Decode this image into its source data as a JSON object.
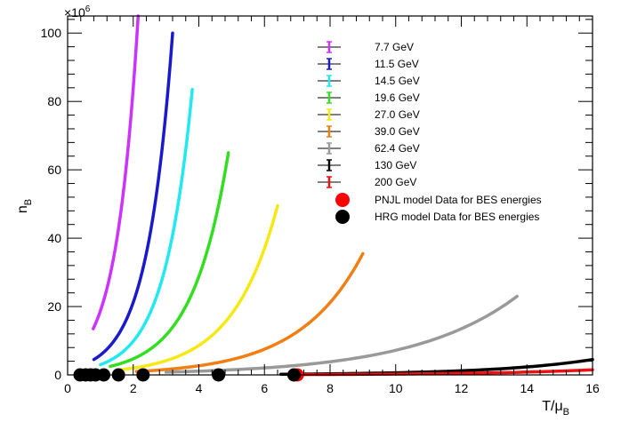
{
  "chart_data": {
    "type": "line",
    "title": "",
    "xlabel": "T/μ",
    "xlabel_sub": "B",
    "ylabel": "n",
    "ylabel_sub": "B",
    "y_multiplier_base": "×10",
    "y_multiplier_exp": "6",
    "xlim": [
      0,
      16
    ],
    "ylim": [
      0,
      105
    ],
    "x_ticks": [
      0,
      2,
      4,
      6,
      8,
      10,
      12,
      14,
      16
    ],
    "y_ticks": [
      0,
      20,
      40,
      60,
      80,
      100
    ],
    "grid": false,
    "legend_position": "top-right",
    "series": [
      {
        "name": "7.7 GeV",
        "color": "#cc33ff",
        "x_start": 0.78,
        "x_end": 2.15,
        "y_start": 13.5,
        "y_end": 105
      },
      {
        "name": "11.5 GeV",
        "color": "#1a1acc",
        "x_start": 0.8,
        "x_end": 3.2,
        "y_start": 4.5,
        "y_end": 100
      },
      {
        "name": "14.5 GeV",
        "color": "#22e8f0",
        "x_start": 1.0,
        "x_end": 3.8,
        "y_start": 3.0,
        "y_end": 83.5
      },
      {
        "name": "19.6 GeV",
        "color": "#33dd22",
        "x_start": 1.3,
        "x_end": 4.9,
        "y_start": 2.5,
        "y_end": 65
      },
      {
        "name": "27.0 GeV",
        "color": "#f5e814",
        "x_start": 1.6,
        "x_end": 6.4,
        "y_start": 1.5,
        "y_end": 49.5
      },
      {
        "name": "39.0 GeV",
        "color": "#f07f14",
        "x_start": 2.1,
        "x_end": 9.0,
        "y_start": 1.0,
        "y_end": 35.5
      },
      {
        "name": "62.4 GeV",
        "color": "#999999",
        "x_start": 3.0,
        "x_end": 13.7,
        "y_start": 0.8,
        "y_end": 23
      },
      {
        "name": "130 GeV",
        "color": "#000000",
        "x_start": 6.5,
        "x_end": 16.0,
        "y_start": 0.2,
        "y_end": 4.5
      },
      {
        "name": "200 GeV",
        "color": "#ee1111",
        "x_start": 6.9,
        "x_end": 16.0,
        "y_start": 0.1,
        "y_end": 1.5
      }
    ],
    "markers": [
      {
        "name": "PNJL model Data for BES energies",
        "color": "#ff0000",
        "points": [
          [
            7.0,
            0
          ]
        ]
      },
      {
        "name": "HRG model Data for BES energies",
        "color": "#000000",
        "points": [
          [
            0.38,
            0
          ],
          [
            0.55,
            0
          ],
          [
            0.7,
            0
          ],
          [
            0.85,
            0
          ],
          [
            1.1,
            0
          ],
          [
            1.55,
            0
          ],
          [
            2.3,
            0
          ],
          [
            4.6,
            0
          ],
          [
            6.9,
            0
          ]
        ]
      }
    ]
  }
}
